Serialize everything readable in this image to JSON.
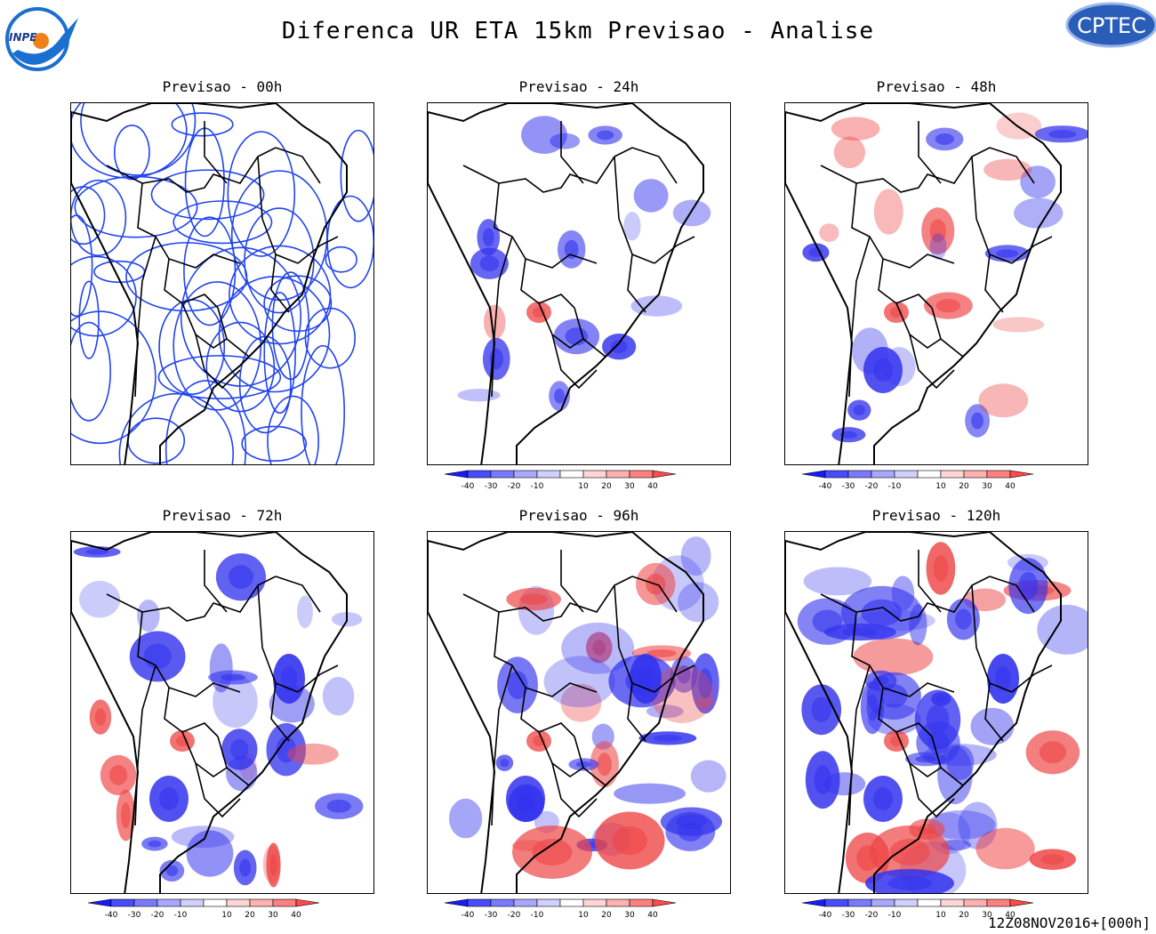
{
  "header": {
    "title": "Diferenca UR ETA 15km Previsao - Analise",
    "logo_left_text": "INPE",
    "logo_right_text": "CPTEC"
  },
  "panels": [
    {
      "title": "Previsao - 00h",
      "style": "contour",
      "colorbar": false
    },
    {
      "title": "Previsao - 24h",
      "style": "shaded",
      "colorbar": true
    },
    {
      "title": "Previsao - 48h",
      "style": "shaded",
      "colorbar": true
    },
    {
      "title": "Previsao - 72h",
      "style": "shaded",
      "colorbar": true
    },
    {
      "title": "Previsao - 96h",
      "style": "shaded",
      "colorbar": true
    },
    {
      "title": "Previsao - 120h",
      "style": "shaded",
      "colorbar": true
    }
  ],
  "colorbar": {
    "labels": [
      "-40",
      "-30",
      "-20",
      "-10",
      "10",
      "20",
      "30",
      "40"
    ],
    "colors": [
      "#1a1aff",
      "#4a4aff",
      "#7a7aff",
      "#a8a8ff",
      "#d0d0ff",
      "#ffffff",
      "#ffd6d6",
      "#ffb0b0",
      "#ff8080",
      "#ff4a4a"
    ]
  },
  "footer": {
    "timestamp": "12Z08NOV2016+[000h]"
  },
  "colors": {
    "negative": "#3333ee",
    "positive": "#ee4444",
    "contour": "#2244ee",
    "border": "#000000"
  }
}
